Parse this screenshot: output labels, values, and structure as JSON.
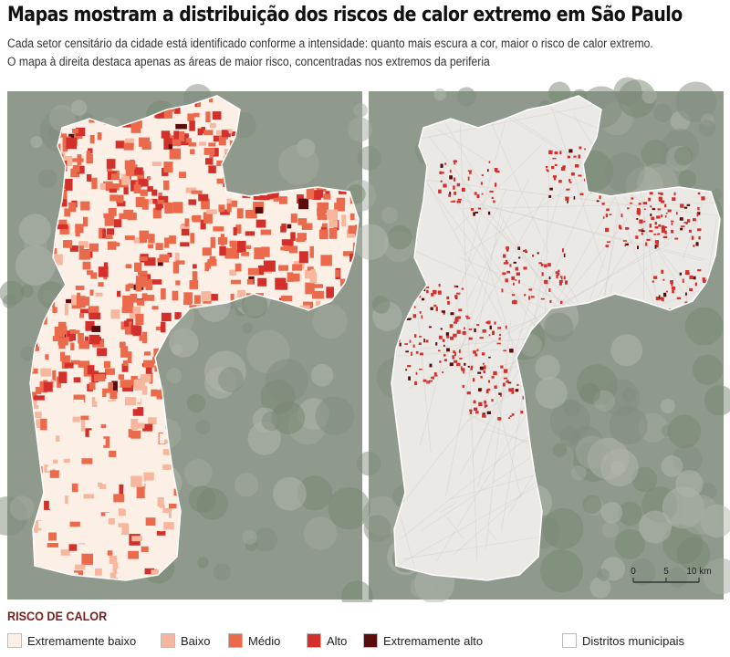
{
  "header": {
    "title": "Mapas mostram a distribuição dos riscos de calor extremo em São Paulo",
    "subtitle": [
      "Cada setor censitário da cidade está identificado conforme a intensidade: quanto mais escura a cor, maior o risco de calor extremo.",
      "O mapa à direita destaca apenas as áreas de maior risco, concentradas nos extremos da periferia"
    ]
  },
  "legend": {
    "title": "RISCO DE CALOR",
    "items": [
      {
        "label": "Extremamente baixo",
        "color": "#fcefe6"
      },
      {
        "label": "Baixo",
        "color": "#f6b79e"
      },
      {
        "label": "Médio",
        "color": "#eb6a4c"
      },
      {
        "label": "Alto",
        "color": "#d3302b"
      },
      {
        "label": "Extremamente alto",
        "color": "#5a0b0b"
      }
    ],
    "boundary": {
      "label": "Distritos municipais",
      "color": "#ffffff"
    }
  },
  "scale_bar": {
    "labels": [
      "0",
      "5",
      "10 km"
    ]
  }
}
